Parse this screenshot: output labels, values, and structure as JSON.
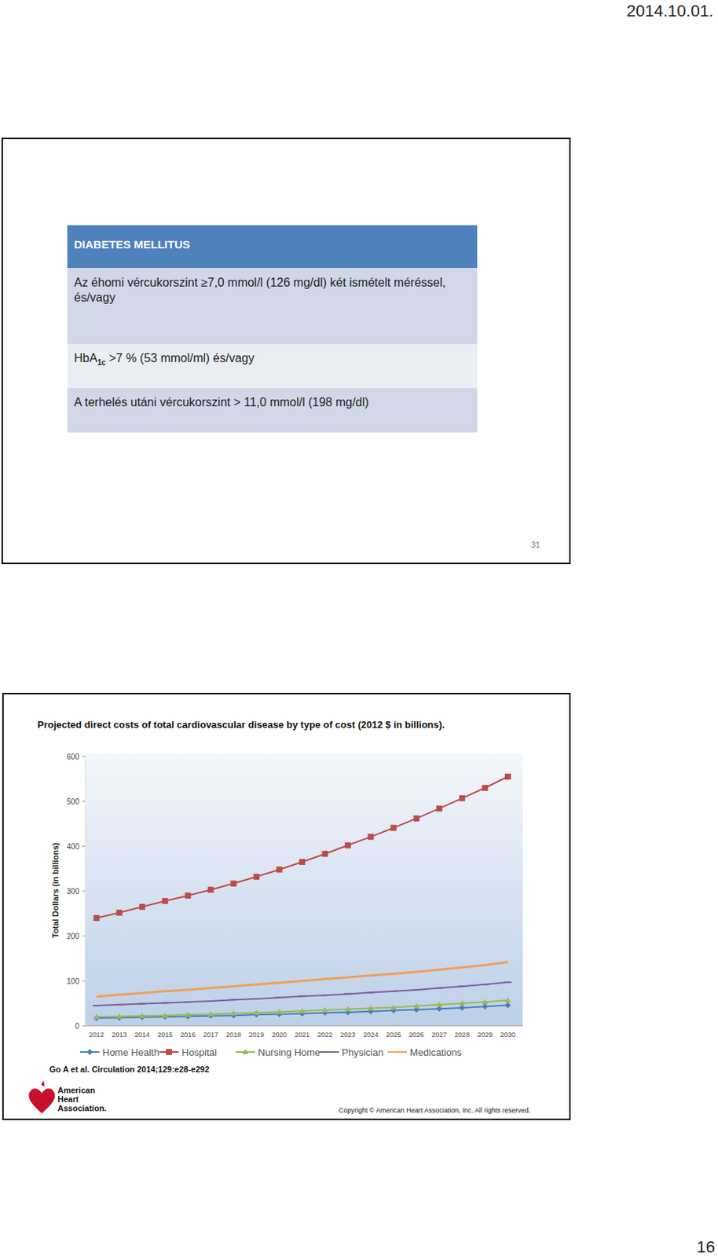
{
  "header": {
    "date": "2014.10.01."
  },
  "slide_1": {
    "title": "DIABETES MELLITUS",
    "rows": [
      {
        "parts": [
          {
            "text": "Az éhomi vércukorszint ≥7,0 mmol/l (126 mg/dl) két ismételt méréssel, és/vagy"
          }
        ]
      },
      {
        "parts": [
          {
            "text": "HbA"
          },
          {
            "text": "1c",
            "sub": true
          },
          {
            "text": " >7 % (53 mmol/ml) és/vagy"
          }
        ]
      },
      {
        "parts": [
          {
            "text": "A terhelés utáni vércukorszint > 11,0 mmol/l (198 mg/dl)"
          }
        ]
      }
    ],
    "slide_number": "31"
  },
  "chart_data": {
    "type": "line",
    "title": "Projected direct costs of total cardiovascular disease by type of cost (2012 $ in billions).",
    "y_label": "Total Dollars (in billions)",
    "categories": [
      "2012",
      "2013",
      "2014",
      "2015",
      "2016",
      "2017",
      "2018",
      "2019",
      "2020",
      "2021",
      "2022",
      "2023",
      "2024",
      "2025",
      "2026",
      "2027",
      "2028",
      "2029",
      "2030"
    ],
    "series": [
      {
        "name": "Home Health",
        "color": "#4a7ebb",
        "marker": "diamond",
        "values": [
          17,
          18,
          19,
          20,
          21,
          22,
          23,
          25,
          26,
          27,
          29,
          30,
          32,
          34,
          36,
          38,
          40,
          43,
          46
        ]
      },
      {
        "name": "Hospital",
        "color": "#be4b48",
        "marker": "square",
        "values": [
          240,
          252,
          265,
          278,
          290,
          303,
          317,
          332,
          348,
          365,
          383,
          402,
          421,
          441,
          462,
          484,
          507,
          530,
          555
        ]
      },
      {
        "name": "Nursing Home",
        "color": "#98b954",
        "marker": "triangle",
        "values": [
          20,
          21,
          22,
          23,
          25,
          26,
          28,
          29,
          31,
          33,
          35,
          37,
          39,
          41,
          44,
          47,
          50,
          53,
          57
        ]
      },
      {
        "name": "Physician",
        "color": "#7d60a0",
        "marker": "dash",
        "values": [
          45,
          47,
          49,
          51,
          53,
          55,
          58,
          60,
          63,
          66,
          68,
          71,
          74,
          77,
          80,
          84,
          88,
          92,
          97
        ]
      },
      {
        "name": "Medications",
        "color": "#f59d56",
        "marker": "none",
        "values": [
          65,
          69,
          73,
          77,
          80,
          84,
          88,
          92,
          96,
          100,
          104,
          108,
          112,
          116,
          120,
          125,
          130,
          135,
          142
        ]
      }
    ],
    "ylim": [
      0,
      600
    ],
    "yticks": [
      0,
      100,
      200,
      300,
      400,
      500,
      600
    ],
    "grid": false,
    "legend": "bottom"
  },
  "slide_2": {
    "source": "Go A et al. Circulation 2014;129:e28-e292",
    "logo_text": [
      "American",
      "Heart",
      "Association."
    ],
    "copyright": "Copyright © American Heart Association, Inc. All rights reserved."
  },
  "page_number": "16"
}
